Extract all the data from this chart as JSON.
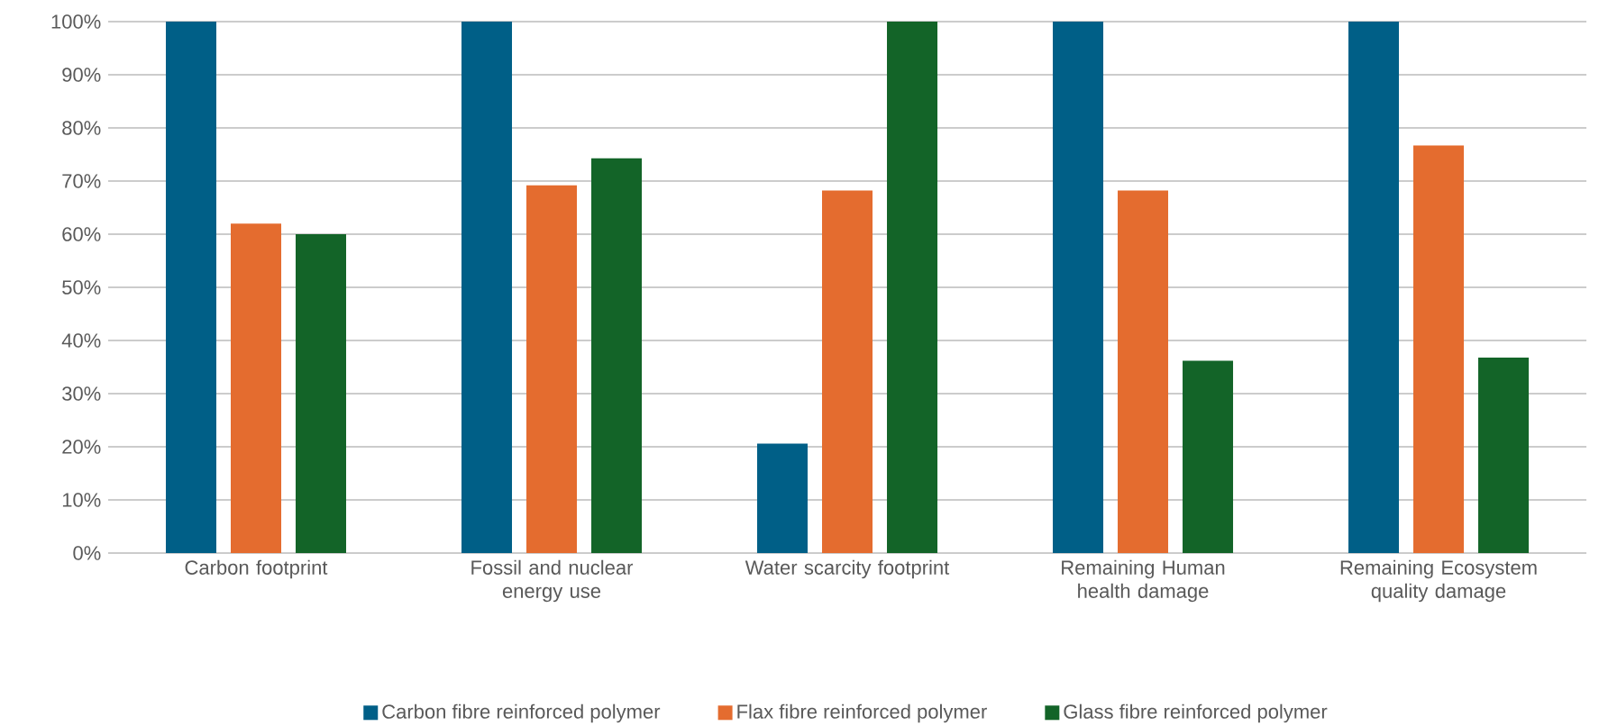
{
  "chart_data": {
    "type": "bar",
    "categories": [
      "Carbon footprint",
      "Fossil and nuclear energy use",
      "Water scarcity footprint",
      "Remaining Human health damage",
      "Remaining Ecosystem quality damage"
    ],
    "series": [
      {
        "name": "Carbon fibre reinforced polymer",
        "color": "#005f87",
        "values": [
          100,
          100,
          20.6,
          100,
          100
        ]
      },
      {
        "name": "Flax fibre reinforced polymer",
        "color": "#e46c2f",
        "values": [
          62,
          69.2,
          68.2,
          68.2,
          76.7
        ]
      },
      {
        "name": "Glass fibre reinforced polymer",
        "color": "#136428",
        "values": [
          60,
          74.3,
          100,
          36.2,
          36.8
        ]
      }
    ],
    "ylim": [
      0,
      100
    ],
    "yticks": [
      {
        "value": 0,
        "label": "0%"
      },
      {
        "value": 10,
        "label": "10%"
      },
      {
        "value": 20,
        "label": "20%"
      },
      {
        "value": 30,
        "label": "30%"
      },
      {
        "value": 40,
        "label": "40%"
      },
      {
        "value": 50,
        "label": "50%"
      },
      {
        "value": 60,
        "label": "60%"
      },
      {
        "value": 70,
        "label": "70%"
      },
      {
        "value": 80,
        "label": "80%"
      },
      {
        "value": 90,
        "label": "90%"
      },
      {
        "value": 100,
        "label": "100%"
      }
    ],
    "grid": "y",
    "legend": "bottom"
  }
}
